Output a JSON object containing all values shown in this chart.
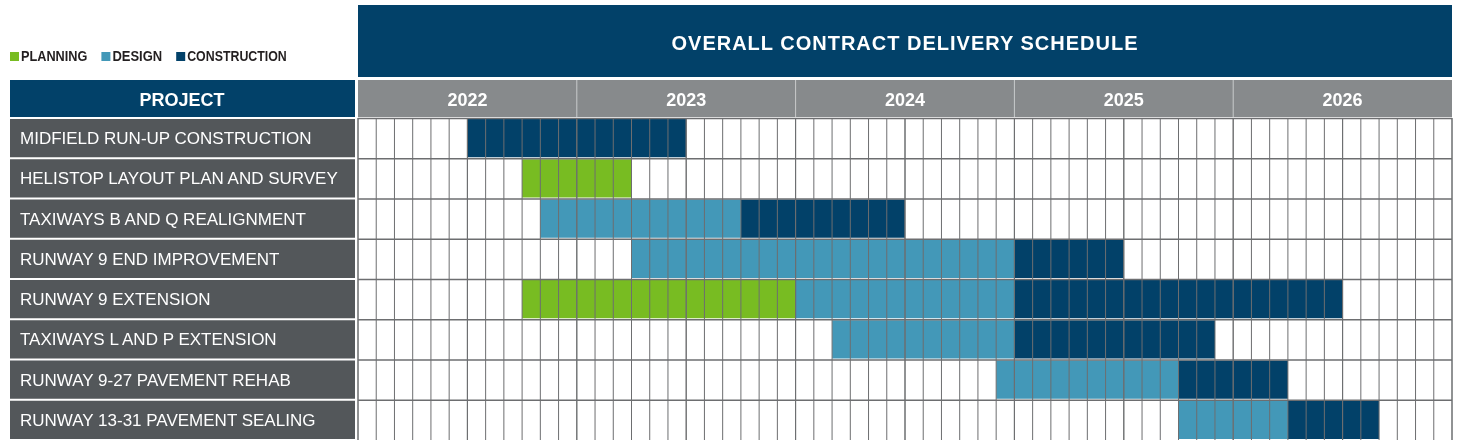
{
  "chart_data": {
    "type": "bar",
    "orientation": "horizontal",
    "title": "OVERALL CONTRACT DELIVERY SCHEDULE",
    "ylabel": "PROJECT",
    "categories": [
      "MIDFIELD RUN-UP CONSTRUCTION",
      "HELISTOP LAYOUT PLAN AND SURVEY",
      "TAXIWAYS B AND Q REALIGNMENT",
      "RUNWAY 9 END IMPROVEMENT",
      "RUNWAY 9 EXTENSION",
      "TAXIWAYS L AND P EXTENSION",
      "RUNWAY 9-27 PAVEMENT REHAB",
      "RUNWAY 13-31 PAVEMENT SEALING"
    ],
    "series": [
      {
        "name": "PLANNING",
        "color": "#78bc22",
        "base": [
          null,
          2022.75,
          null,
          null,
          2022.75,
          null,
          null,
          null
        ],
        "values": [
          null,
          0.5,
          null,
          null,
          1.25,
          null,
          null,
          null
        ]
      },
      {
        "name": "DESIGN",
        "color": "#4398b8",
        "base": [
          null,
          null,
          2022.833,
          2023.25,
          2024,
          2024.167,
          2024.917,
          2025.75
        ],
        "values": [
          null,
          null,
          0.917,
          1.75,
          1,
          0.833,
          0.833,
          0.5
        ]
      },
      {
        "name": "CONSTRUCTION",
        "color": "#024169",
        "base": [
          2022.5,
          null,
          2023.75,
          2025,
          2025,
          2025,
          2025.75,
          2026.25
        ],
        "values": [
          1,
          null,
          0.75,
          0.5,
          1.5,
          0.917,
          0.5,
          0.417
        ]
      }
    ],
    "xlim": [
      2022,
      2027
    ],
    "xticks": [
      {
        "value": 2022,
        "label": null
      },
      {
        "value": 2022.5,
        "label": "2022"
      },
      {
        "value": 2023,
        "label": null
      },
      {
        "value": 2023.5,
        "label": "2023"
      },
      {
        "value": 2024,
        "label": null
      },
      {
        "value": 2024.5,
        "label": "2024"
      },
      {
        "value": 2025,
        "label": null
      },
      {
        "value": 2025.5,
        "label": "2025"
      },
      {
        "value": 2026,
        "label": null
      },
      {
        "value": 2026.5,
        "label": "2026"
      },
      {
        "value": 2027,
        "label": null
      }
    ],
    "grid": true,
    "legend": "top left"
  }
}
